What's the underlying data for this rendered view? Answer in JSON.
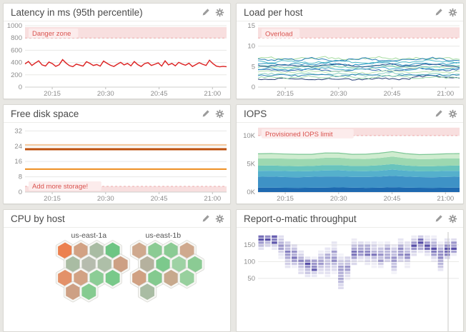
{
  "page": {
    "background": "#e8e7e3"
  },
  "icons": {
    "edit": "pencil-icon",
    "settings": "gear-icon"
  },
  "chart_data": [
    {
      "type": "line",
      "title": "Latency in ms (95th percentile)",
      "color": "#dc1f1f",
      "ylim": [
        0,
        1000
      ],
      "yticks": [
        {
          "v": 0,
          "label": "0"
        },
        {
          "v": 200,
          "label": "200"
        },
        {
          "v": 400,
          "label": "400"
        },
        {
          "v": 600,
          "label": "600"
        },
        {
          "v": 800,
          "label": "800"
        },
        {
          "v": 1000,
          "label": "1000"
        }
      ],
      "xticks": [
        {
          "f": 0.135,
          "label": "20:15"
        },
        {
          "f": 0.4,
          "label": "20:30"
        },
        {
          "f": 0.665,
          "label": "20:45"
        },
        {
          "f": 0.93,
          "label": "21:00"
        }
      ],
      "zone": {
        "lo": 800,
        "hi": 978,
        "label": "Danger zone"
      },
      "values": [
        378,
        418,
        352,
        392,
        428,
        362,
        344,
        408,
        382,
        338,
        364,
        448,
        392,
        350,
        332,
        374,
        358,
        342,
        414,
        386,
        352,
        368,
        342,
        424,
        388,
        356,
        336,
        372,
        404,
        362,
        386,
        346,
        416,
        366,
        336,
        382,
        398,
        352,
        372,
        394,
        342,
        428,
        362,
        386,
        346,
        404,
        376,
        356,
        390,
        336,
        366,
        398,
        372,
        352,
        438,
        382,
        342,
        330,
        338,
        332
      ]
    },
    {
      "type": "multiline",
      "title": "Load per host",
      "ylim": [
        0,
        15
      ],
      "yticks": [
        {
          "v": 0,
          "label": "0"
        },
        {
          "v": 5,
          "label": "5"
        },
        {
          "v": 10,
          "label": "10"
        },
        {
          "v": 15,
          "label": "15"
        }
      ],
      "xticks": [
        {
          "f": 0.135,
          "label": "20:15"
        },
        {
          "f": 0.4,
          "label": "20:30"
        },
        {
          "f": 0.665,
          "label": "20:45"
        },
        {
          "f": 0.93,
          "label": "21:00"
        }
      ],
      "zone": {
        "lo": 12,
        "hi": 14.6,
        "label": "Overload"
      },
      "series": [
        {
          "color": "#16306e",
          "values": [
            2.0,
            1.9,
            2.1,
            2.0,
            1.8,
            2.0,
            2.1,
            1.9,
            2.0,
            2.2,
            2.0,
            1.9,
            2.6,
            2.8,
            2.5,
            2.3
          ]
        },
        {
          "color": "#225ea8",
          "values": [
            4.1,
            4.3,
            3.9,
            4.2,
            4.4,
            4.0,
            3.8,
            4.2,
            4.5,
            4.1,
            3.9,
            4.3,
            4.6,
            4.2,
            4.0,
            4.4
          ]
        },
        {
          "color": "#1d91c0",
          "values": [
            5.6,
            5.8,
            5.4,
            5.7,
            5.5,
            5.9,
            5.6,
            5.3,
            5.7,
            6.0,
            5.6,
            5.4,
            5.8,
            5.5,
            5.7,
            5.9
          ]
        },
        {
          "color": "#41b6c4",
          "values": [
            6.3,
            6.0,
            6.4,
            6.1,
            5.9,
            6.2,
            6.5,
            6.1,
            5.8,
            6.2,
            6.4,
            6.0,
            6.3,
            6.6,
            6.2,
            5.9
          ]
        },
        {
          "color": "#7fcdbb",
          "values": [
            3.1,
            3.3,
            2.9,
            3.2,
            3.4,
            3.0,
            3.3,
            3.1,
            2.8,
            3.2,
            3.5,
            3.1,
            2.9,
            3.3,
            3.0,
            3.2
          ]
        },
        {
          "color": "#a1d99b",
          "values": [
            7.0,
            7.2,
            6.8,
            7.1,
            6.9,
            7.3,
            7.0,
            6.7,
            7.1,
            7.4,
            7.0,
            6.8,
            7.2,
            6.9,
            7.1,
            6.8
          ]
        },
        {
          "color": "#c7e9b4",
          "values": [
            4.8,
            5.0,
            4.6,
            4.9,
            5.1,
            4.7,
            5.0,
            4.8,
            4.5,
            4.9,
            5.2,
            4.8,
            4.6,
            5.0,
            4.7,
            4.9
          ]
        },
        {
          "color": "#2c7fb8",
          "values": [
            2.9,
            2.7,
            3.0,
            2.8,
            3.1,
            2.9,
            2.6,
            3.0,
            3.2,
            2.8,
            2.7,
            3.1,
            2.9,
            3.0,
            2.8,
            3.1
          ]
        },
        {
          "color": "#63c6bd",
          "values": [
            5.0,
            5.2,
            4.8,
            5.1,
            4.9,
            5.3,
            5.0,
            4.7,
            5.1,
            5.4,
            5.0,
            4.8,
            5.2,
            4.9,
            5.1,
            5.3
          ]
        },
        {
          "color": "#94d6a4",
          "values": [
            2.4,
            2.6,
            2.2,
            2.5,
            2.7,
            2.3,
            2.6,
            2.4,
            2.1,
            2.5,
            2.8,
            2.4,
            2.2,
            2.6,
            2.3,
            2.5
          ]
        },
        {
          "color": "#1f78b4",
          "values": [
            6.8,
            6.5,
            6.9,
            6.6,
            7.1,
            6.7,
            6.4,
            6.8,
            7.0,
            6.6,
            6.5,
            6.9,
            6.7,
            7.2,
            6.6,
            6.3
          ]
        },
        {
          "color": "#35a1c9",
          "values": [
            4.4,
            4.6,
            4.2,
            4.5,
            4.3,
            4.7,
            4.4,
            4.1,
            4.5,
            4.8,
            4.4,
            4.2,
            4.6,
            4.3,
            4.5,
            4.7
          ]
        },
        {
          "color": "#b8e4b0",
          "values": [
            3.7,
            3.9,
            3.5,
            3.8,
            4.0,
            3.6,
            3.9,
            3.7,
            3.4,
            3.8,
            4.1,
            3.7,
            3.5,
            3.9,
            3.6,
            3.8
          ]
        },
        {
          "color": "#1b4586",
          "values": [
            5.3,
            5.1,
            5.5,
            5.2,
            5.0,
            5.4,
            5.6,
            5.2,
            4.9,
            5.3,
            5.5,
            5.1,
            5.4,
            5.7,
            5.3,
            5.0
          ]
        }
      ]
    },
    {
      "type": "hlines",
      "title": "Free disk space",
      "ylim": [
        0,
        34
      ],
      "yticks": [
        {
          "v": 0,
          "label": "0"
        },
        {
          "v": 8,
          "label": "8"
        },
        {
          "v": 16,
          "label": "16"
        },
        {
          "v": 24,
          "label": "24"
        },
        {
          "v": 32,
          "label": "32"
        }
      ],
      "xticks": [
        {
          "f": 0.135,
          "label": "20:15"
        },
        {
          "f": 0.4,
          "label": "20:30"
        },
        {
          "f": 0.665,
          "label": "20:45"
        },
        {
          "f": 0.93,
          "label": "21:00"
        }
      ],
      "zone": {
        "lo": 0,
        "hi": 3,
        "label": "Add more storage!"
      },
      "lines": [
        {
          "v": 24.7,
          "color": "#f5c89d",
          "w": 2
        },
        {
          "v": 22.4,
          "color": "#bc4f0d",
          "w": 3
        },
        {
          "v": 12.0,
          "color": "#ee8d1e",
          "w": 2
        }
      ]
    },
    {
      "type": "stacked",
      "title": "IOPS",
      "ylim": [
        0,
        11.5
      ],
      "yticks": [
        {
          "v": 0,
          "label": "0K"
        },
        {
          "v": 5,
          "label": "5K"
        },
        {
          "v": 10,
          "label": "10K"
        }
      ],
      "xticks": [
        {
          "f": 0.135,
          "label": "20:15"
        },
        {
          "f": 0.4,
          "label": "20:30"
        },
        {
          "f": 0.665,
          "label": "20:45"
        },
        {
          "f": 0.93,
          "label": "21:00"
        }
      ],
      "zone": {
        "lo": 10,
        "hi": 11.4,
        "label": "Provisioned IOPS limit"
      },
      "top_stroke": "#7cc795",
      "layers": [
        {
          "color": "#1e69b0",
          "values": [
            0.78,
            0.8,
            0.76,
            0.74,
            0.77,
            0.8,
            0.83,
            0.79,
            0.75,
            0.77,
            0.86,
            0.8,
            0.76,
            0.74,
            0.77,
            0.79
          ]
        },
        {
          "color": "#3e92c6",
          "values": [
            1.92,
            1.95,
            1.9,
            1.88,
            1.93,
            1.97,
            1.94,
            1.9,
            1.92,
            1.96,
            2.02,
            1.94,
            1.9,
            1.88,
            1.92,
            1.95
          ]
        },
        {
          "color": "#55b0cc",
          "values": [
            1.05,
            1.03,
            1.07,
            1.04,
            1.02,
            1.06,
            1.08,
            1.04,
            1.02,
            1.05,
            1.1,
            1.05,
            1.02,
            1.04,
            1.06,
            1.03
          ]
        },
        {
          "color": "#69c4bd",
          "values": [
            0.92,
            0.94,
            0.9,
            0.93,
            0.91,
            0.95,
            0.92,
            0.89,
            0.93,
            0.96,
            0.98,
            0.92,
            0.9,
            0.93,
            0.91,
            0.94
          ]
        },
        {
          "color": "#9cd8b1",
          "values": [
            1.28,
            1.26,
            1.3,
            1.27,
            1.25,
            1.29,
            1.31,
            1.27,
            1.25,
            1.28,
            1.33,
            1.28,
            1.25,
            1.27,
            1.3,
            1.26
          ]
        },
        {
          "color": "#cfeccf",
          "values": [
            0.82,
            0.84,
            0.8,
            0.83,
            0.81,
            0.85,
            0.82,
            0.79,
            0.83,
            0.86,
            0.88,
            0.82,
            0.8,
            0.83,
            0.81,
            0.84
          ]
        }
      ]
    },
    {
      "type": "hexmap",
      "title": "CPU by host",
      "groups": [
        {
          "label": "us-east-1a",
          "rows": [
            {
              "offset": 0,
              "colors": [
                "#ec8150",
                "#d2a284",
                "#a9bca3",
                "#6ec584"
              ]
            },
            {
              "offset": 0.5,
              "colors": [
                "#a9bca3",
                "#b6bcae",
                "#aebfa8",
                "#cda084"
              ]
            },
            {
              "offset": 0,
              "colors": [
                "#e39169",
                "#d2a284",
                "#8ccd96",
                "#79c98a"
              ]
            },
            {
              "offset": 0.5,
              "colors": [
                "#cda084",
                "#85cb90"
              ]
            }
          ]
        },
        {
          "label": "us-east-1b",
          "rows": [
            {
              "offset": 0,
              "colors": [
                "#cfa98e",
                "#8bcb94",
                "#8bcb94",
                "#cfa98e"
              ]
            },
            {
              "offset": 0.5,
              "colors": [
                "#b5b19e",
                "#7cc98c",
                "#9ed2a4",
                "#8bcb94"
              ]
            },
            {
              "offset": 0,
              "colors": [
                "#d0a183",
                "#84ca8f",
                "#c7a98d",
                "#98d09e"
              ]
            },
            {
              "offset": 0.5,
              "colors": [
                "#a9bca3"
              ]
            }
          ]
        }
      ]
    },
    {
      "type": "heatmap",
      "title": "Report-o-matic throughput",
      "cell_color": "#584fa8",
      "yticks": [
        {
          "v": 50,
          "label": "50"
        },
        {
          "v": 100,
          "label": "100"
        },
        {
          "v": 150,
          "label": "150"
        }
      ],
      "columns": [
        {
          "c": 168,
          "s": 14,
          "a": 0.75
        },
        {
          "c": 170,
          "s": 12,
          "a": 0.9
        },
        {
          "c": 168,
          "s": 14,
          "a": 0.85
        },
        {
          "c": 150,
          "s": 20,
          "a": 0.45
        },
        {
          "c": 128,
          "s": 22,
          "a": 0.55
        },
        {
          "c": 120,
          "s": 18,
          "a": 0.6
        },
        {
          "c": 100,
          "s": 20,
          "a": 0.5
        },
        {
          "c": 92,
          "s": 16,
          "a": 0.75
        },
        {
          "c": 88,
          "s": 14,
          "a": 0.85
        },
        {
          "c": 100,
          "s": 18,
          "a": 0.6
        },
        {
          "c": 105,
          "s": 22,
          "a": 0.5
        },
        {
          "c": 115,
          "s": 25,
          "a": 0.55
        },
        {
          "c": 70,
          "s": 25,
          "a": 0.7
        },
        {
          "c": 85,
          "s": 20,
          "a": 0.55
        },
        {
          "c": 130,
          "s": 20,
          "a": 0.6
        },
        {
          "c": 138,
          "s": 16,
          "a": 0.65
        },
        {
          "c": 132,
          "s": 18,
          "a": 0.6
        },
        {
          "c": 128,
          "s": 20,
          "a": 0.55
        },
        {
          "c": 122,
          "s": 18,
          "a": 0.6
        },
        {
          "c": 130,
          "s": 16,
          "a": 0.6
        },
        {
          "c": 112,
          "s": 22,
          "a": 0.5
        },
        {
          "c": 135,
          "s": 18,
          "a": 0.65
        },
        {
          "c": 128,
          "s": 20,
          "a": 0.6
        },
        {
          "c": 148,
          "s": 14,
          "a": 0.8
        },
        {
          "c": 158,
          "s": 12,
          "a": 0.9
        },
        {
          "c": 150,
          "s": 14,
          "a": 0.8
        },
        {
          "c": 143,
          "s": 16,
          "a": 0.9
        },
        {
          "c": 120,
          "s": 25,
          "a": 0.5
        },
        {
          "c": 140,
          "s": 14,
          "a": 0.95
        },
        {
          "c": 148,
          "s": 12,
          "a": 0.85
        }
      ]
    }
  ]
}
